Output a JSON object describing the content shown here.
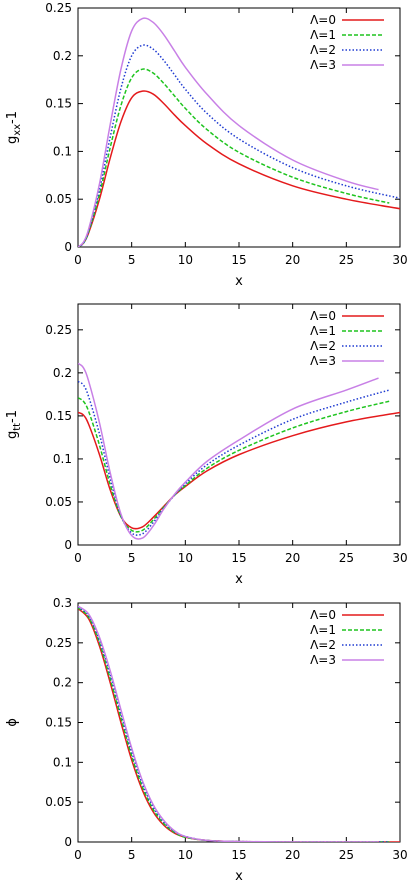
{
  "chart_data": [
    {
      "type": "line",
      "xlabel": "x",
      "ylabel": "g_xx-1",
      "ylabel_main": "g",
      "ylabel_sub": "xx",
      "ylabel_tail": "-1",
      "xlim": [
        0,
        30
      ],
      "ylim": [
        0,
        0.25
      ],
      "xticks": [
        "0",
        "5",
        "10",
        "15",
        "20",
        "25",
        "30"
      ],
      "yticks": [
        "0",
        "0.05",
        "0.1",
        "0.15",
        "0.2",
        "0.25"
      ],
      "legend_position": "top-right",
      "series": [
        {
          "name": "Λ=0",
          "color": "#e41a1c",
          "dash": "solid",
          "x": [
            0,
            0.5,
            1,
            2,
            3,
            4,
            5,
            6,
            7,
            8,
            9,
            10,
            12,
            15,
            20,
            25,
            30
          ],
          "y": [
            0,
            0.004,
            0.015,
            0.05,
            0.093,
            0.131,
            0.156,
            0.163,
            0.16,
            0.15,
            0.138,
            0.127,
            0.108,
            0.087,
            0.064,
            0.05,
            0.04
          ]
        },
        {
          "name": "Λ=1",
          "color": "#1fc41f",
          "dash": "dashed",
          "x": [
            0,
            0.5,
            1,
            2,
            3,
            4,
            5,
            6,
            7,
            8,
            9,
            10,
            12,
            15,
            20,
            25,
            29
          ],
          "y": [
            0,
            0.004,
            0.016,
            0.055,
            0.104,
            0.148,
            0.177,
            0.186,
            0.182,
            0.171,
            0.158,
            0.145,
            0.123,
            0.099,
            0.073,
            0.056,
            0.046
          ]
        },
        {
          "name": "Λ=2",
          "color": "#1f3bd1",
          "dash": "dotted",
          "x": [
            0,
            0.5,
            1,
            2,
            3,
            4,
            5,
            6,
            7,
            8,
            9,
            10,
            12,
            15,
            20,
            25,
            30
          ],
          "y": [
            0,
            0.004,
            0.017,
            0.06,
            0.115,
            0.166,
            0.2,
            0.211,
            0.207,
            0.195,
            0.18,
            0.165,
            0.14,
            0.113,
            0.083,
            0.064,
            0.051
          ]
        },
        {
          "name": "Λ=3",
          "color": "#c880e6",
          "dash": "solid",
          "x": [
            0,
            0.5,
            1,
            2,
            3,
            4,
            5,
            6,
            7,
            8,
            9,
            10,
            12,
            15,
            20,
            25,
            28
          ],
          "y": [
            0,
            0.005,
            0.019,
            0.066,
            0.128,
            0.186,
            0.226,
            0.239,
            0.235,
            0.222,
            0.205,
            0.188,
            0.16,
            0.127,
            0.091,
            0.069,
            0.06
          ]
        }
      ]
    },
    {
      "type": "line",
      "xlabel": "x",
      "ylabel": "g_tt-1",
      "ylabel_main": "g",
      "ylabel_sub": "tt",
      "ylabel_tail": "-1",
      "xlim": [
        0,
        30
      ],
      "ylim": [
        0,
        0.28
      ],
      "xticks": [
        "0",
        "5",
        "10",
        "15",
        "20",
        "25",
        "30"
      ],
      "yticks": [
        "0",
        "0.05",
        "0.1",
        "0.15",
        "0.2",
        "0.25"
      ],
      "legend_position": "top-right",
      "series": [
        {
          "name": "Λ=0",
          "color": "#e41a1c",
          "dash": "solid",
          "x": [
            0,
            0.5,
            1,
            2,
            3,
            4,
            5,
            6,
            7,
            8,
            9,
            10,
            12,
            15,
            20,
            25,
            30
          ],
          "y": [
            0.154,
            0.151,
            0.14,
            0.105,
            0.064,
            0.033,
            0.02,
            0.021,
            0.032,
            0.045,
            0.058,
            0.068,
            0.086,
            0.105,
            0.127,
            0.143,
            0.154
          ]
        },
        {
          "name": "Λ=1",
          "color": "#1fc41f",
          "dash": "dashed",
          "x": [
            0,
            0.5,
            1,
            2,
            3,
            4,
            5,
            6,
            7,
            8,
            9,
            10,
            12,
            15,
            20,
            25,
            29
          ],
          "y": [
            0.171,
            0.167,
            0.155,
            0.116,
            0.07,
            0.033,
            0.017,
            0.017,
            0.029,
            0.044,
            0.058,
            0.069,
            0.089,
            0.11,
            0.136,
            0.155,
            0.167
          ]
        },
        {
          "name": "Λ=2",
          "color": "#1f3bd1",
          "dash": "dotted",
          "x": [
            0,
            0.5,
            1,
            2,
            3,
            4,
            5,
            6,
            7,
            8,
            9,
            10,
            12,
            15,
            20,
            25,
            29
          ],
          "y": [
            0.19,
            0.186,
            0.172,
            0.129,
            0.077,
            0.034,
            0.014,
            0.013,
            0.026,
            0.043,
            0.058,
            0.071,
            0.093,
            0.116,
            0.146,
            0.166,
            0.18
          ]
        },
        {
          "name": "Λ=3",
          "color": "#c880e6",
          "dash": "solid",
          "x": [
            0,
            0.5,
            1,
            2,
            3,
            4,
            5,
            6,
            7,
            8,
            9,
            10,
            12,
            15,
            20,
            25,
            28
          ],
          "y": [
            0.211,
            0.206,
            0.19,
            0.142,
            0.084,
            0.036,
            0.011,
            0.008,
            0.022,
            0.042,
            0.059,
            0.073,
            0.097,
            0.122,
            0.158,
            0.18,
            0.194
          ]
        }
      ]
    },
    {
      "type": "line",
      "xlabel": "x",
      "ylabel": "ϕ",
      "xlim": [
        0,
        30
      ],
      "ylim": [
        0,
        0.3
      ],
      "xticks": [
        "0",
        "5",
        "10",
        "15",
        "20",
        "25",
        "30"
      ],
      "yticks": [
        "0",
        "0.05",
        "0.1",
        "0.15",
        "0.2",
        "0.25",
        "0.3"
      ],
      "legend_position": "top-right",
      "series": [
        {
          "name": "Λ=0",
          "color": "#e41a1c",
          "dash": "solid",
          "x": [
            0,
            1,
            2,
            3,
            4,
            5,
            6,
            7,
            8,
            9,
            10,
            12,
            15,
            20,
            25,
            30
          ],
          "y": [
            0.293,
            0.28,
            0.246,
            0.2,
            0.15,
            0.103,
            0.065,
            0.038,
            0.021,
            0.011,
            0.006,
            0.002,
            0.0005,
            0,
            0,
            0
          ]
        },
        {
          "name": "Λ=1",
          "color": "#1fc41f",
          "dash": "dashed",
          "x": [
            0,
            1,
            2,
            3,
            4,
            5,
            6,
            7,
            8,
            9,
            10,
            12,
            15,
            20,
            25,
            29
          ],
          "y": [
            0.294,
            0.282,
            0.25,
            0.205,
            0.156,
            0.108,
            0.069,
            0.041,
            0.023,
            0.012,
            0.006,
            0.002,
            0.0005,
            0,
            0,
            0
          ]
        },
        {
          "name": "Λ=2",
          "color": "#1f3bd1",
          "dash": "dotted",
          "x": [
            0,
            1,
            2,
            3,
            4,
            5,
            6,
            7,
            8,
            9,
            10,
            12,
            15,
            20,
            25,
            29
          ],
          "y": [
            0.295,
            0.284,
            0.253,
            0.21,
            0.161,
            0.113,
            0.073,
            0.044,
            0.025,
            0.013,
            0.007,
            0.002,
            0.0006,
            0,
            0,
            0
          ]
        },
        {
          "name": "Λ=3",
          "color": "#c880e6",
          "dash": "solid",
          "x": [
            0,
            1,
            2,
            3,
            4,
            5,
            6,
            7,
            8,
            9,
            10,
            12,
            15,
            20,
            25,
            28
          ],
          "y": [
            0.296,
            0.286,
            0.257,
            0.215,
            0.166,
            0.118,
            0.077,
            0.047,
            0.027,
            0.014,
            0.007,
            0.002,
            0.0006,
            0,
            0,
            0
          ]
        }
      ]
    }
  ]
}
